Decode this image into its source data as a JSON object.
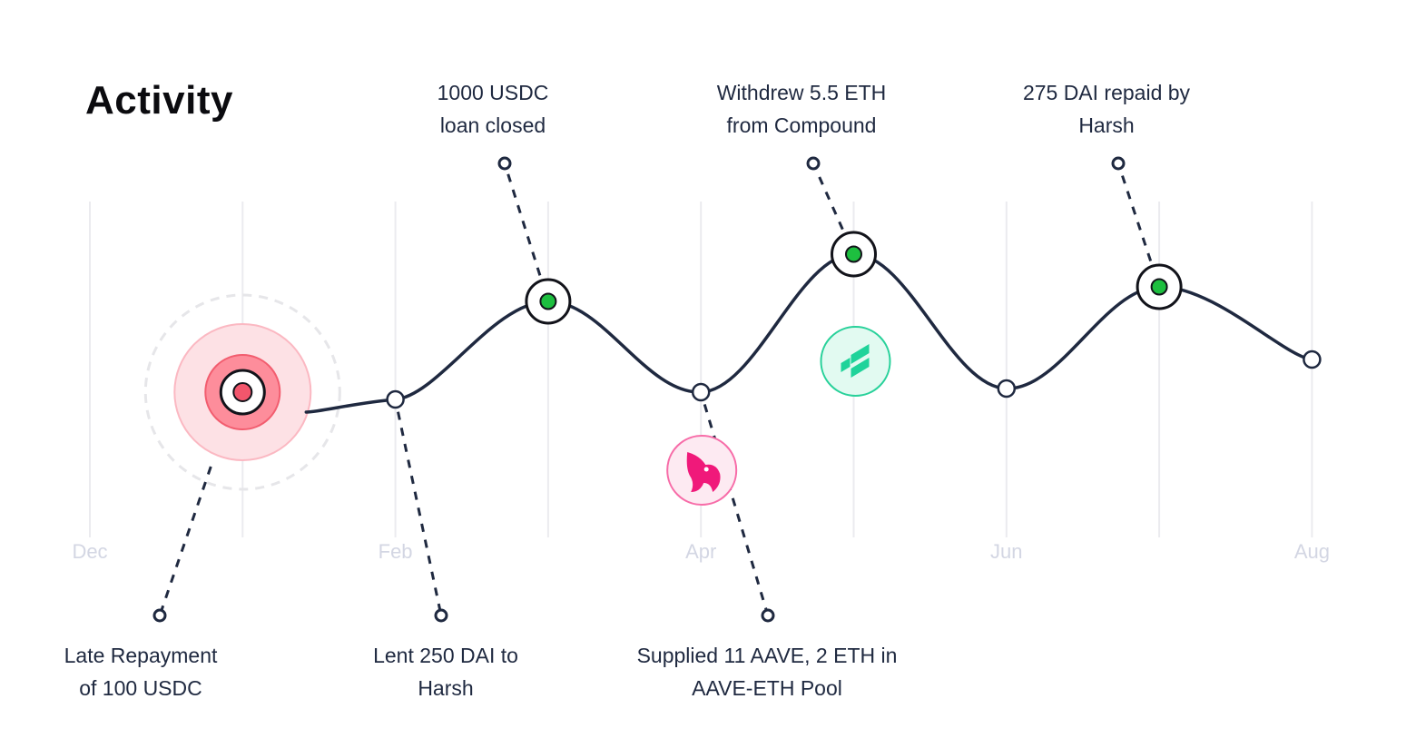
{
  "title": "Activity",
  "chart_data": {
    "type": "line",
    "months": [
      "Dec",
      "Feb",
      "Apr",
      "Jun",
      "Aug"
    ],
    "points": [
      {
        "x": "Jan",
        "y": 3.0,
        "kind": "late"
      },
      {
        "x": "Feb",
        "y": 2.8,
        "kind": "point"
      },
      {
        "x": "Mar",
        "y": 5.5,
        "kind": "success"
      },
      {
        "x": "Apr",
        "y": 3.0,
        "kind": "point"
      },
      {
        "x": "May",
        "y": 6.8,
        "kind": "success"
      },
      {
        "x": "Jun",
        "y": 3.1,
        "kind": "point"
      },
      {
        "x": "Jul",
        "y": 5.9,
        "kind": "success"
      },
      {
        "x": "Aug",
        "y": 3.9,
        "kind": "point"
      }
    ],
    "annotations": [
      {
        "text": "Late Repayment\nof 100 USDC",
        "position": "below",
        "point": "Jan"
      },
      {
        "text": "Lent 250 DAI to\nHarsh",
        "position": "below",
        "point": "Feb"
      },
      {
        "text": "1000 USDC\nloan closed",
        "position": "above",
        "point": "Mar"
      },
      {
        "text": "Supplied 11 AAVE, 2 ETH in\nAAVE-ETH Pool",
        "position": "below",
        "point": "Apr",
        "icon": "uniswap-icon"
      },
      {
        "text": "Withdrew 5.5 ETH\nfrom Compound",
        "position": "above",
        "point": "May",
        "icon": "compound-icon"
      },
      {
        "text": "275 DAI repaid by\nHarsh",
        "position": "above",
        "point": "Jul"
      }
    ],
    "colors": {
      "line": "#1f2940",
      "grid": "#ebebef",
      "success": "#1dbf3f",
      "late": "#f2566c",
      "month_label": "#d3d6e3",
      "uniswap": "#f0197a",
      "compound": "#1fd39a"
    },
    "grid": true
  }
}
